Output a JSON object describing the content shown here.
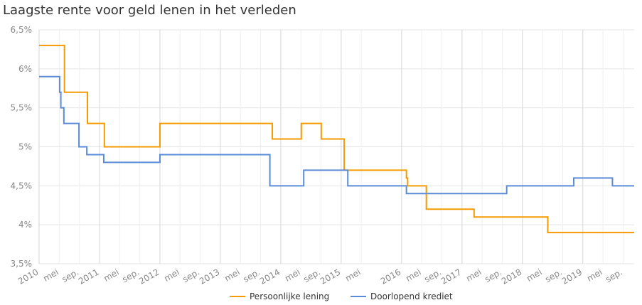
{
  "chart_data": {
    "type": "step-line",
    "title": "Laagste rente voor geld lenen in het verleden",
    "xlim": [
      2010,
      2019.85
    ],
    "xticks": [
      {
        "value": 2010,
        "label": "2010"
      },
      {
        "value": 2010.333,
        "label": "mei"
      },
      {
        "value": 2010.667,
        "label": "sep."
      },
      {
        "value": 2011,
        "label": "2011"
      },
      {
        "value": 2011.333,
        "label": "mei"
      },
      {
        "value": 2011.667,
        "label": "sep."
      },
      {
        "value": 2012,
        "label": "2012"
      },
      {
        "value": 2012.333,
        "label": "mei"
      },
      {
        "value": 2012.667,
        "label": "sep."
      },
      {
        "value": 2013,
        "label": "2013"
      },
      {
        "value": 2013.333,
        "label": "mei"
      },
      {
        "value": 2013.667,
        "label": "sep."
      },
      {
        "value": 2014,
        "label": "2014"
      },
      {
        "value": 2014.333,
        "label": "mei"
      },
      {
        "value": 2014.667,
        "label": "sep."
      },
      {
        "value": 2015,
        "label": "2015"
      },
      {
        "value": 2015.333,
        "label": "mei"
      },
      {
        "value": 2016,
        "label": "2016"
      },
      {
        "value": 2016.333,
        "label": "mei"
      },
      {
        "value": 2016.667,
        "label": "sep."
      },
      {
        "value": 2017,
        "label": "2017"
      },
      {
        "value": 2017.333,
        "label": "mei"
      },
      {
        "value": 2017.667,
        "label": "sep."
      },
      {
        "value": 2018,
        "label": "2018"
      },
      {
        "value": 2018.333,
        "label": "mei"
      },
      {
        "value": 2018.667,
        "label": "sep."
      },
      {
        "value": 2019,
        "label": "2019"
      },
      {
        "value": 2019.333,
        "label": "mei"
      },
      {
        "value": 2019.667,
        "label": "sep."
      }
    ],
    "ylim": [
      3.5,
      6.5
    ],
    "yticks": [
      {
        "value": 3.5,
        "label": "3,5%"
      },
      {
        "value": 4,
        "label": "4%"
      },
      {
        "value": 4.5,
        "label": "4,5%"
      },
      {
        "value": 5,
        "label": "5%"
      },
      {
        "value": 5.5,
        "label": "5,5%"
      },
      {
        "value": 6,
        "label": "6%"
      },
      {
        "value": 6.5,
        "label": "6,5%"
      }
    ],
    "grid": true,
    "series": [
      {
        "name": "Persoonlijke lening",
        "color": "#f59a00",
        "x": [
          2010,
          2010.42,
          2010.8,
          2011.08,
          2012.0,
          2013.86,
          2014.34,
          2014.67,
          2015.05,
          2016.08,
          2016.1,
          2016.41,
          2017.2,
          2018.42,
          2019.85
        ],
        "values": [
          6.3,
          5.7,
          5.3,
          5.0,
          5.3,
          5.1,
          5.3,
          5.1,
          4.7,
          4.6,
          4.5,
          4.2,
          4.1,
          3.9,
          3.9
        ]
      },
      {
        "name": "Doorlopend krediet",
        "color": "#5b8bd6",
        "x": [
          2010,
          2010.34,
          2010.36,
          2010.41,
          2010.66,
          2010.79,
          2011.07,
          2012.0,
          2013.82,
          2014.38,
          2015.11,
          2016.08,
          2017.74,
          2018.85,
          2019.49,
          2019.85
        ],
        "values": [
          5.9,
          5.7,
          5.5,
          5.3,
          5.0,
          4.9,
          4.8,
          4.9,
          4.5,
          4.7,
          4.5,
          4.4,
          4.5,
          4.6,
          4.5,
          4.5
        ]
      }
    ]
  }
}
